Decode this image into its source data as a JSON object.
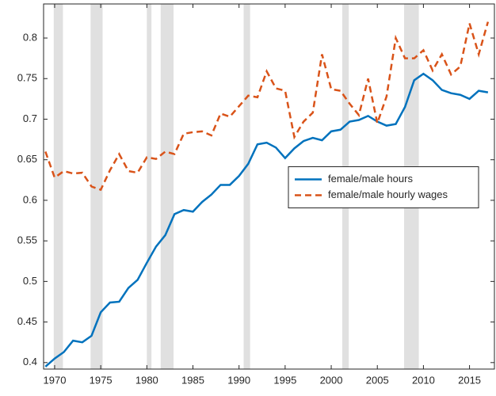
{
  "chart_data": {
    "type": "line",
    "x": [
      1969,
      1970,
      1971,
      1972,
      1973,
      1974,
      1975,
      1976,
      1977,
      1978,
      1979,
      1980,
      1981,
      1982,
      1983,
      1984,
      1985,
      1986,
      1987,
      1988,
      1989,
      1990,
      1991,
      1992,
      1993,
      1994,
      1995,
      1996,
      1997,
      1998,
      1999,
      2000,
      2001,
      2002,
      2003,
      2004,
      2005,
      2006,
      2007,
      2008,
      2009,
      2010,
      2011,
      2012,
      2013,
      2014,
      2015,
      2016,
      2017
    ],
    "series": [
      {
        "name": "female/male hours",
        "color": "#0072bd",
        "dash": "solid",
        "values": [
          0.395,
          0.405,
          0.413,
          0.427,
          0.425,
          0.433,
          0.462,
          0.474,
          0.475,
          0.492,
          0.502,
          0.523,
          0.543,
          0.557,
          0.583,
          0.588,
          0.586,
          0.598,
          0.607,
          0.619,
          0.619,
          0.63,
          0.645,
          0.669,
          0.671,
          0.665,
          0.652,
          0.664,
          0.673,
          0.677,
          0.674,
          0.685,
          0.687,
          0.697,
          0.699,
          0.704,
          0.697,
          0.692,
          0.694,
          0.715,
          0.748,
          0.756,
          0.748,
          0.736,
          0.732,
          0.73,
          0.725,
          0.735,
          0.733
        ]
      },
      {
        "name": "female/male hourly wages",
        "color": "#d95319",
        "dash": "dashed",
        "values": [
          0.66,
          0.628,
          0.636,
          0.633,
          0.634,
          0.617,
          0.613,
          0.637,
          0.657,
          0.636,
          0.634,
          0.653,
          0.651,
          0.66,
          0.657,
          0.682,
          0.684,
          0.685,
          0.68,
          0.707,
          0.703,
          0.716,
          0.729,
          0.727,
          0.759,
          0.738,
          0.735,
          0.678,
          0.697,
          0.708,
          0.78,
          0.737,
          0.735,
          0.719,
          0.705,
          0.75,
          0.695,
          0.728,
          0.8,
          0.775,
          0.775,
          0.785,
          0.76,
          0.78,
          0.755,
          0.765,
          0.818,
          0.78,
          0.82
        ]
      }
    ],
    "shaded_periods": [
      [
        1969.9,
        1970.9
      ],
      [
        1973.9,
        1975.2
      ],
      [
        1980.0,
        1980.5
      ],
      [
        1981.5,
        1982.9
      ],
      [
        1990.5,
        1991.2
      ],
      [
        2001.2,
        2001.9
      ],
      [
        2007.9,
        2009.5
      ]
    ],
    "shade_color": "#e0e0e0",
    "xlim": [
      1968.8,
      2017.7
    ],
    "xticks": [
      1970,
      1975,
      1980,
      1985,
      1990,
      1995,
      2000,
      2005,
      2010,
      2015
    ],
    "ylim": [
      0.392,
      0.842
    ],
    "yticks": [
      0.4,
      0.45,
      0.5,
      0.55,
      0.6,
      0.65,
      0.7,
      0.75,
      0.8
    ],
    "legend": "center-right"
  }
}
